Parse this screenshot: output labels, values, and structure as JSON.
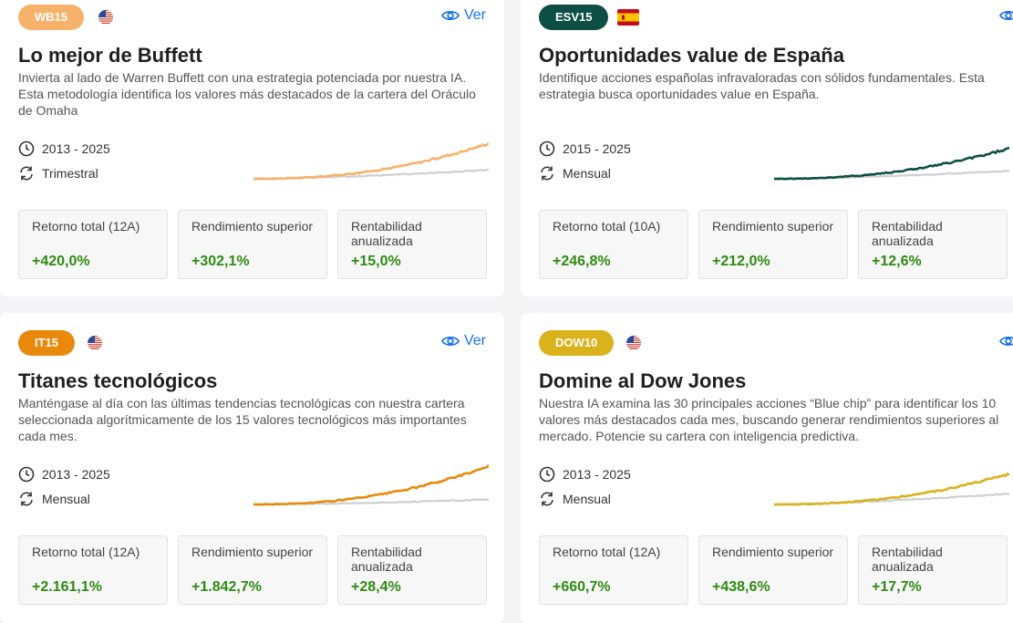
{
  "view_label": "Ver",
  "cards": [
    {
      "badge": "WB15",
      "badge_color": "#f6b26b",
      "flag": "us",
      "title": "Lo mejor de Buffett",
      "description": "Invierta al lado de Warren Buffett con una estrategia potenciada por nuestra IA. Esta metodología identifica los valores más destacados de la cartera del Oráculo de Omaha",
      "period": "2013 - 2025",
      "frequency": "Trimestral",
      "line_color": "#f6b26b",
      "stats": [
        {
          "label": "Retorno total (12A)",
          "value": "+420,0%"
        },
        {
          "label": "Rendimiento superior",
          "value": "+302,1%"
        },
        {
          "label": "Rentabilidad anualizada",
          "value": "+15,0%"
        }
      ]
    },
    {
      "badge": "ESV15",
      "badge_color": "#0d4f45",
      "flag": "es",
      "title": "Oportunidades value de España",
      "description": "Identifique acciones españolas infravaloradas con sólidos fundamentales. Esta estrategia busca oportunidades value en España.",
      "period": "2015 - 2025",
      "frequency": "Mensual",
      "line_color": "#0d4f45",
      "stats": [
        {
          "label": "Retorno total (10A)",
          "value": "+246,8%"
        },
        {
          "label": "Rendimiento superior",
          "value": "+212,0%"
        },
        {
          "label": "Rentabilidad anualizada",
          "value": "+12,6%"
        }
      ]
    },
    {
      "badge": "IT15",
      "badge_color": "#e8890c",
      "flag": "us",
      "title": "Titanes tecnológicos",
      "description": "Manténgase al día con las últimas tendencias tecnológicas con nuestra cartera seleccionada algorítmicamente de los 15 valores tecnológicos más importantes cada mes.",
      "period": "2013 - 2025",
      "frequency": "Mensual",
      "line_color": "#e8890c",
      "stats": [
        {
          "label": "Retorno total (12A)",
          "value": "+2.161,1%"
        },
        {
          "label": "Rendimiento superior",
          "value": "+1.842,7%"
        },
        {
          "label": "Rentabilidad anualizada",
          "value": "+28,4%"
        }
      ]
    },
    {
      "badge": "DOW10",
      "badge_color": "#d9b21c",
      "flag": "us",
      "title": "Domine al Dow Jones",
      "description": "Nuestra IA examina las 30 principales acciones “Blue chip” para identificar los 10 valores más destacados cada mes, buscando generar rendimientos superiores al mercado. Potencie su cartera con inteligencia predictiva.",
      "period": "2013 - 2025",
      "frequency": "Mensual",
      "line_color": "#d9b21c",
      "stats": [
        {
          "label": "Retorno total (12A)",
          "value": "+660,7%"
        },
        {
          "label": "Rendimiento superior",
          "value": "+438,6%"
        },
        {
          "label": "Rentabilidad anualizada",
          "value": "+17,7%"
        }
      ]
    }
  ]
}
